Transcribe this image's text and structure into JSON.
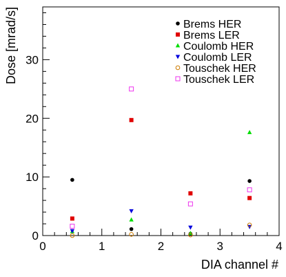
{
  "chart_data": {
    "type": "scatter",
    "xlabel": "DIA channel #",
    "ylabel": "Dose [mrad/s]",
    "xlim": [
      0,
      4
    ],
    "ylim": [
      0,
      39
    ],
    "x_ticks": [
      0,
      1,
      2,
      3,
      4
    ],
    "y_ticks": [
      0,
      10,
      20,
      30
    ],
    "grid": false,
    "legend_position": "top-right",
    "x": [
      0.5,
      1.5,
      2.5,
      3.5
    ],
    "series": [
      {
        "name": "Brems HER",
        "marker": "circle",
        "filled": true,
        "color": "#000000",
        "values": [
          9.5,
          1.1,
          0.3,
          9.3
        ]
      },
      {
        "name": "Brems LER",
        "marker": "square",
        "filled": true,
        "color": "#e00000",
        "values": [
          2.9,
          19.7,
          7.2,
          6.4
        ]
      },
      {
        "name": "Coulomb HER",
        "marker": "triangle-up",
        "filled": true,
        "color": "#00dd00",
        "values": [
          0.7,
          2.7,
          0.4,
          17.6
        ]
      },
      {
        "name": "Coulomb LER",
        "marker": "triangle-down",
        "filled": true,
        "color": "#0000dd",
        "values": [
          0.8,
          4.2,
          1.4,
          1.5
        ]
      },
      {
        "name": "Touschek HER",
        "marker": "circle",
        "filled": false,
        "color": "#cc7a00",
        "values": [
          0.0,
          0.2,
          0.1,
          1.8
        ]
      },
      {
        "name": "Touschek LER",
        "marker": "square",
        "filled": false,
        "color": "#ee33ee",
        "values": [
          1.6,
          25.0,
          5.4,
          7.8
        ]
      }
    ]
  }
}
